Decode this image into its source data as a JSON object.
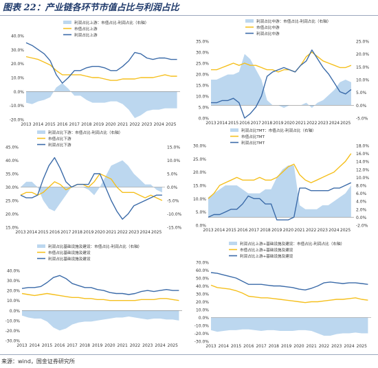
{
  "title": "图表 22：产业链各环节市值占比与利润占比",
  "source": "来源：wind，国金证券研究所",
  "colors": {
    "area": "#bcd7ef",
    "yellow": "#f5bf1c",
    "blue": "#3a6aa8"
  },
  "chart_data": [
    {
      "type": "line",
      "legend": [
        "利润占比上游：市值占比-利润占比（右轴）",
        "市值占比上游",
        "利润占比上游"
      ],
      "x_labels": [
        "2013",
        "2014",
        "2015",
        "2016",
        "2017",
        "2018",
        "2019",
        "2020",
        "2021",
        "2022",
        "2023",
        "2024",
        "2025"
      ],
      "ylim": [
        -20,
        40
      ],
      "y_ticks": [
        "40.0%",
        "30.0%",
        "20.0%",
        "10.0%",
        "0.0%",
        "-10.0%",
        "-20.0%"
      ],
      "x": [
        2013,
        2013.5,
        2014,
        2014.5,
        2015,
        2015.5,
        2016,
        2016.5,
        2017,
        2017.5,
        2018,
        2018.5,
        2019,
        2019.5,
        2020,
        2020.5,
        2021,
        2021.5,
        2022,
        2022.5,
        2023,
        2023.5,
        2024,
        2024.5,
        2025,
        2025.5
      ],
      "series": [
        {
          "name": "市值占比上游",
          "axis": "left",
          "values": [
            25,
            24,
            23,
            21,
            19,
            15,
            12,
            12,
            12,
            12,
            11,
            10,
            10,
            9,
            8,
            8,
            9,
            9,
            9,
            10,
            10,
            10,
            11,
            12,
            11,
            11
          ]
        },
        {
          "name": "利润占比上游",
          "axis": "left",
          "values": [
            35,
            33,
            30,
            27,
            22,
            12,
            6,
            10,
            15,
            15,
            17,
            18,
            18,
            17,
            15,
            15,
            18,
            22,
            28,
            27,
            24,
            23,
            24,
            24,
            23,
            23
          ]
        },
        {
          "name": "利润占比上游：市值占比-利润占比（右轴）",
          "axis": "left",
          "type": "area",
          "values": [
            -8,
            -9,
            -7,
            -6,
            -4,
            3,
            6,
            2,
            -3,
            -3,
            -6,
            -8,
            -8,
            -8,
            -7,
            -7,
            -9,
            -13,
            -19,
            -17,
            -14,
            -13,
            -13,
            -12,
            -12,
            -12
          ]
        }
      ]
    },
    {
      "type": "line",
      "legend": [
        "利润占比中游：市值占比-利润占比（右轴）",
        "市值占比中游",
        "利润占比中游"
      ],
      "x_labels": [
        "2013",
        "2014",
        "2015",
        "2016",
        "2017",
        "2018",
        "2019",
        "2020",
        "2021",
        "2022",
        "2023",
        "2024",
        "2025"
      ],
      "ylim": [
        0,
        35
      ],
      "y2lim": [
        -5,
        25
      ],
      "y_ticks": [
        "35.0%",
        "30.0%",
        "25.0%",
        "20.0%",
        "15.0%",
        "10.0%",
        "5.0%",
        "0.0%"
      ],
      "y2_ticks": [
        "25.0%",
        "20.0%",
        "15.0%",
        "10.0%",
        "5.0%",
        "0.0%",
        "-5.0%"
      ],
      "x": [
        2013,
        2013.5,
        2014,
        2014.5,
        2015,
        2015.5,
        2016,
        2016.5,
        2017,
        2017.5,
        2018,
        2018.5,
        2019,
        2019.5,
        2020,
        2020.5,
        2021,
        2021.5,
        2022,
        2022.5,
        2023,
        2023.5,
        2024,
        2024.5,
        2025,
        2025.5
      ],
      "series": [
        {
          "name": "市值占比中游",
          "axis": "left",
          "values": [
            22,
            22,
            23,
            24,
            25,
            24,
            25,
            24,
            24,
            23,
            22,
            22,
            21,
            22,
            22,
            21,
            24,
            28,
            30,
            28,
            26,
            25,
            24,
            23,
            23,
            24
          ]
        },
        {
          "name": "利润占比中游",
          "axis": "left",
          "values": [
            7,
            7,
            8,
            8,
            9,
            7,
            0,
            2,
            5,
            10,
            19,
            21,
            22,
            23,
            22,
            21,
            24,
            26,
            31,
            27,
            23,
            20,
            16,
            12,
            11,
            13
          ]
        },
        {
          "name": "利润占比中游：市值占比-利润占比（右轴）",
          "axis": "right",
          "type": "area",
          "values": [
            10,
            10,
            11,
            12,
            12,
            13,
            20,
            18,
            14,
            10,
            2,
            0,
            0,
            -1,
            0,
            0,
            0,
            1,
            -1,
            1,
            2,
            4,
            6,
            9,
            10,
            9
          ]
        }
      ]
    },
    {
      "type": "line",
      "legend": [
        "利润占比下游：市值占比-利润占比（右轴）",
        "市值占比下游",
        "利润占比下游"
      ],
      "x_labels": [
        "2013",
        "2014",
        "2015",
        "2016",
        "2017",
        "2018",
        "2019",
        "2020",
        "2021",
        "2022",
        "2023",
        "2024",
        "2025"
      ],
      "ylim": [
        15,
        45
      ],
      "y2lim": [
        -15,
        15
      ],
      "y_ticks": [
        "45.0%",
        "40.0%",
        "35.0%",
        "30.0%",
        "25.0%",
        "20.0%",
        "15.0%"
      ],
      "y2_ticks": [
        "15.0%",
        "10.0%",
        "5.0%",
        "0.0%",
        "-5.0%",
        "-10.0%",
        "-15.0%"
      ],
      "x": [
        2013,
        2013.5,
        2014,
        2014.5,
        2015,
        2015.5,
        2016,
        2016.5,
        2017,
        2017.5,
        2018,
        2018.5,
        2019,
        2019.5,
        2020,
        2020.5,
        2021,
        2021.5,
        2022,
        2022.5,
        2023,
        2023.5,
        2024,
        2024.5,
        2025,
        2025.5
      ],
      "series": [
        {
          "name": "市值占比下游",
          "axis": "left",
          "values": [
            27,
            28,
            28,
            27,
            28,
            30,
            32,
            31,
            29,
            30,
            31,
            31,
            30,
            32,
            35,
            34,
            33,
            30,
            28,
            28,
            28,
            27,
            26,
            27,
            26,
            25
          ]
        },
        {
          "name": "利润占比下游",
          "axis": "left",
          "values": [
            27,
            26,
            26,
            27,
            33,
            38,
            41,
            37,
            32,
            30,
            31,
            31,
            31,
            35,
            35,
            30,
            25,
            21,
            18,
            20,
            23,
            24,
            25,
            26,
            27,
            27
          ]
        },
        {
          "name": "利润占比下游：市值占比-利润占比（右轴）",
          "axis": "right",
          "type": "area",
          "values": [
            0,
            2,
            2,
            0,
            -5,
            -8,
            -9,
            -6,
            -3,
            0,
            0,
            0,
            -1,
            -3,
            0,
            4,
            8,
            9,
            10,
            8,
            5,
            3,
            1,
            1,
            -1,
            -2
          ]
        }
      ]
    },
    {
      "type": "line",
      "legend": [
        "利润占比TMT：市值占比-利润占比（右轴）",
        "市值占比TMT",
        "利润占比TMT"
      ],
      "x_labels": [
        "2013",
        "2014",
        "2015",
        "2016",
        "2017",
        "2018",
        "2019",
        "2020",
        "2021",
        "2022",
        "2023",
        "2024",
        "2025"
      ],
      "ylim": [
        0,
        30
      ],
      "y2lim": [
        -2,
        18
      ],
      "y_ticks": [
        "30.0%",
        "25.0%",
        "20.0%",
        "15.0%",
        "10.0%",
        "5.0%",
        "0.0%"
      ],
      "y2_ticks": [
        "18.0%",
        "16.0%",
        "14.0%",
        "12.0%",
        "10.0%",
        "8.0%",
        "6.0%",
        "4.0%",
        "2.0%",
        "0.0%",
        "-2.0%"
      ],
      "x": [
        2013,
        2013.5,
        2014,
        2014.5,
        2015,
        2015.5,
        2016,
        2016.5,
        2017,
        2017.5,
        2018,
        2018.5,
        2019,
        2019.5,
        2020,
        2020.5,
        2021,
        2021.5,
        2022,
        2022.5,
        2023,
        2023.5,
        2024,
        2024.5,
        2025,
        2025.5
      ],
      "series": [
        {
          "name": "市值占比TMT",
          "axis": "left",
          "values": [
            10,
            12,
            15,
            16,
            17,
            18,
            17,
            17,
            17,
            18,
            17,
            17,
            18,
            20,
            22,
            23,
            19,
            17,
            16,
            17,
            18,
            19,
            20,
            22,
            24,
            27
          ]
        },
        {
          "name": "利润占比TMT",
          "axis": "left",
          "values": [
            3,
            4,
            4,
            5,
            6,
            6,
            8,
            11,
            10,
            10,
            8,
            8,
            2,
            2,
            2,
            3,
            14,
            14,
            13,
            13,
            13,
            13,
            14,
            14,
            15,
            16
          ]
        },
        {
          "name": "利润占比TMT：市值占比-利润占比（右轴）",
          "axis": "right",
          "type": "area",
          "values": [
            5,
            6,
            7,
            8,
            8,
            8,
            7,
            6,
            6,
            6,
            7,
            7,
            10,
            12,
            13,
            13,
            3,
            2,
            2,
            2,
            3,
            3,
            4,
            5,
            6,
            8
          ]
        }
      ]
    },
    {
      "type": "line",
      "legend": [
        "利润占比基础设施及建设：市值占比-利润占比（右轴）",
        "市值占比基础设施及建设",
        "利润占比基础设施及建设"
      ],
      "x_labels": [
        "2013",
        "2014",
        "2015",
        "2016",
        "2017",
        "2018",
        "2019",
        "2020",
        "2021",
        "2022",
        "2023",
        "2024",
        "2025"
      ],
      "ylim": [
        -30,
        40
      ],
      "y_ticks": [
        "40.0%",
        "30.0%",
        "20.0%",
        "10.0%",
        "0.0%",
        "-10.0%",
        "-20.0%",
        "-30.0%"
      ],
      "x": [
        2013,
        2013.5,
        2014,
        2014.5,
        2015,
        2015.5,
        2016,
        2016.5,
        2017,
        2017.5,
        2018,
        2018.5,
        2019,
        2019.5,
        2020,
        2020.5,
        2021,
        2021.5,
        2022,
        2022.5,
        2023,
        2023.5,
        2024,
        2024.5,
        2025,
        2025.5
      ],
      "series": [
        {
          "name": "市值占比基础设施及建设",
          "axis": "left",
          "values": [
            17,
            16,
            15,
            16,
            17,
            16,
            15,
            14,
            13,
            13,
            12,
            12,
            11,
            11,
            10,
            10,
            10,
            10,
            10,
            11,
            11,
            11,
            12,
            12,
            11,
            10
          ]
        },
        {
          "name": "利润占比基础设施及建设",
          "axis": "left",
          "values": [
            22,
            23,
            23,
            24,
            28,
            33,
            35,
            32,
            27,
            25,
            23,
            23,
            21,
            20,
            18,
            17,
            17,
            16,
            17,
            19,
            20,
            19,
            20,
            21,
            20,
            20
          ]
        },
        {
          "name": "利润占比基础设施及建设：市值占比-利润占比（右轴）",
          "axis": "left",
          "type": "area",
          "values": [
            -5,
            -7,
            -8,
            -8,
            -11,
            -17,
            -20,
            -18,
            -14,
            -12,
            -11,
            -11,
            -10,
            -9,
            -8,
            -7,
            -7,
            -6,
            -7,
            -8,
            -9,
            -8,
            -8,
            -9,
            -9,
            -10
          ]
        }
      ]
    },
    {
      "type": "line",
      "legend": [
        "利润占比上游+基础设施及建设：市值占比-利润占比（右轴）",
        "市值占比上游+基础设施及建设",
        "利润占比上游+基础设施及建设"
      ],
      "x_labels": [
        "2013",
        "2014",
        "2015",
        "2016",
        "2017",
        "2018",
        "2019",
        "2020",
        "2021",
        "2022",
        "2023",
        "2024",
        "2025"
      ],
      "ylim": [
        -30,
        70
      ],
      "y_ticks": [
        "70.0%",
        "60.0%",
        "50.0%",
        "40.0%",
        "30.0%",
        "20.0%",
        "10.0%",
        "0.0%",
        "-10.0%",
        "-20.0%",
        "-30.0%"
      ],
      "x": [
        2013,
        2013.5,
        2014,
        2014.5,
        2015,
        2015.5,
        2016,
        2016.5,
        2017,
        2017.5,
        2018,
        2018.5,
        2019,
        2019.5,
        2020,
        2020.5,
        2021,
        2021.5,
        2022,
        2022.5,
        2023,
        2023.5,
        2024,
        2024.5,
        2025,
        2025.5
      ],
      "series": [
        {
          "name": "市值占比上游+基础设施及建设",
          "axis": "left",
          "values": [
            41,
            38,
            37,
            36,
            34,
            31,
            27,
            26,
            25,
            25,
            24,
            23,
            22,
            21,
            20,
            19,
            20,
            20,
            21,
            22,
            23,
            23,
            24,
            25,
            23,
            22
          ]
        },
        {
          "name": "利润占比上游+基础设施及建设",
          "axis": "left",
          "values": [
            57,
            56,
            54,
            52,
            50,
            46,
            42,
            42,
            42,
            41,
            40,
            40,
            39,
            38,
            36,
            35,
            37,
            40,
            44,
            45,
            44,
            43,
            44,
            44,
            43,
            42
          ]
        },
        {
          "name": "利润占比上游+基础设施及建设：市值占比-利润占比（右轴）",
          "axis": "left",
          "type": "area",
          "values": [
            -16,
            -18,
            -17,
            -16,
            -16,
            -15,
            -15,
            -16,
            -17,
            -16,
            -16,
            -17,
            -17,
            -17,
            -16,
            -16,
            -17,
            -20,
            -23,
            -23,
            -21,
            -20,
            -20,
            -19,
            -20,
            -20
          ]
        }
      ]
    }
  ]
}
